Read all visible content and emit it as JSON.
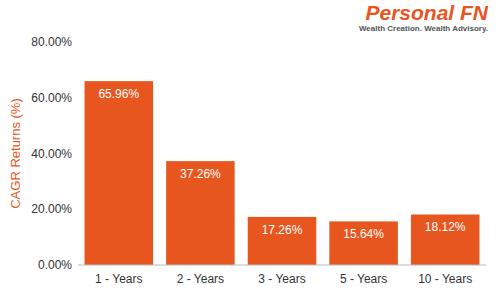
{
  "chart_data": {
    "type": "bar",
    "y_label": "CAGR Returns (%)",
    "annotations": [
      "Personal FN",
      "Wealth Creation. Wealth Advisory."
    ],
    "categories": [
      "1 - Years",
      "2 - Years",
      "3 - Years",
      "5 - Years",
      "10 - Years"
    ],
    "values": [
      65.96,
      37.26,
      17.26,
      15.64,
      18.12
    ],
    "value_labels": [
      "65.96%",
      "37.26%",
      "17.26%",
      "15.64%",
      "18.12%"
    ],
    "color": "#e8561f",
    "ylim": [
      0,
      80
    ],
    "yticks": [
      {
        "value": 0,
        "label": "0.00%"
      },
      {
        "value": 20,
        "label": "20.00%"
      },
      {
        "value": 40,
        "label": "40.00%"
      },
      {
        "value": 60,
        "label": "60.00%"
      },
      {
        "value": 80,
        "label": "80.00%"
      }
    ],
    "grid": false,
    "data_labels": true
  }
}
